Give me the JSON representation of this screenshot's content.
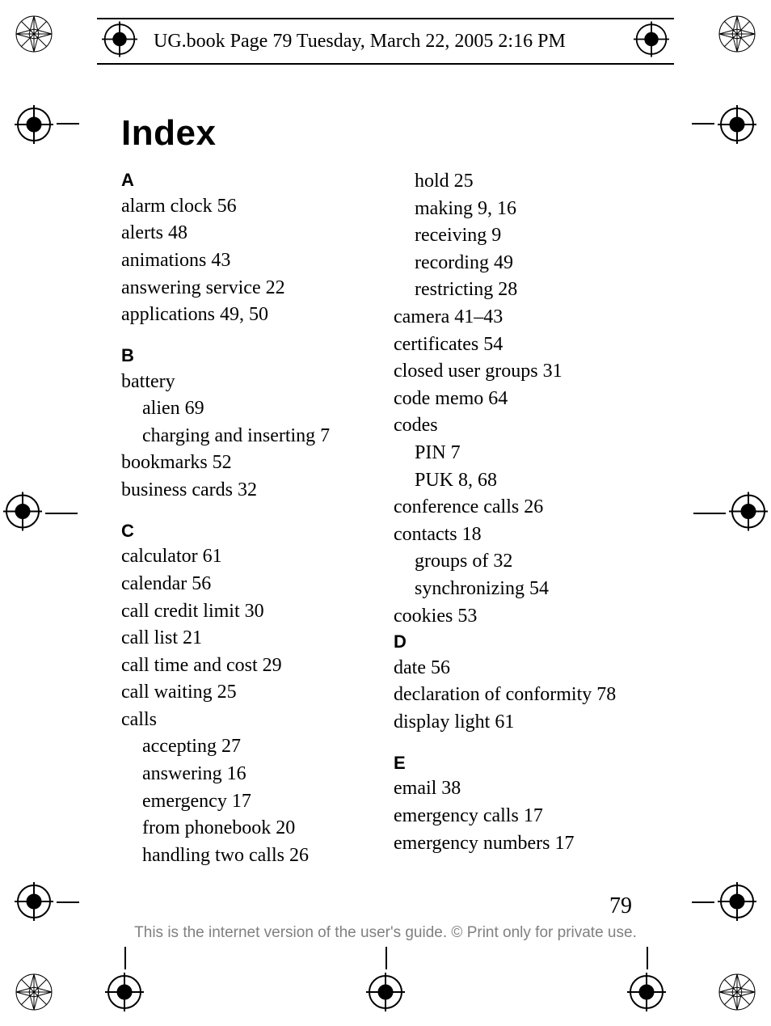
{
  "header": "UG.book  Page 79  Tuesday, March 22, 2005  2:16 PM",
  "title": "Index",
  "page_number": "79",
  "footer": "This is the internet version of the user's guide. © Print only for private use.",
  "colors": {
    "text": "#000000",
    "footer_text": "#808080",
    "background": "#ffffff"
  },
  "typography": {
    "body_font": "Times New Roman",
    "heading_font": "Arial",
    "title_size_pt": 33,
    "letter_size_pt": 16,
    "entry_size_pt": 18,
    "footer_size_pt": 14
  },
  "columns": {
    "left": [
      {
        "type": "letter",
        "text": "A"
      },
      {
        "type": "entry",
        "text": "alarm clock 56"
      },
      {
        "type": "entry",
        "text": "alerts 48"
      },
      {
        "type": "entry",
        "text": "animations 43"
      },
      {
        "type": "entry",
        "text": "answering service 22"
      },
      {
        "type": "entry",
        "text": "applications 49, 50"
      },
      {
        "type": "letter",
        "text": "B"
      },
      {
        "type": "entry",
        "text": "battery"
      },
      {
        "type": "sub",
        "text": "alien 69"
      },
      {
        "type": "sub",
        "text": "charging and inserting 7"
      },
      {
        "type": "entry",
        "text": "bookmarks 52"
      },
      {
        "type": "entry",
        "text": "business cards 32"
      },
      {
        "type": "letter",
        "text": "C"
      },
      {
        "type": "entry",
        "text": "calculator 61"
      },
      {
        "type": "entry",
        "text": "calendar 56"
      },
      {
        "type": "entry",
        "text": "call credit limit 30"
      },
      {
        "type": "entry",
        "text": "call list 21"
      },
      {
        "type": "entry",
        "text": "call time and cost 29"
      },
      {
        "type": "entry",
        "text": "call waiting 25"
      },
      {
        "type": "entry",
        "text": "calls"
      },
      {
        "type": "sub",
        "text": "accepting 27"
      },
      {
        "type": "sub",
        "text": "answering 16"
      },
      {
        "type": "sub",
        "text": "emergency 17"
      },
      {
        "type": "sub",
        "text": "from phonebook 20"
      },
      {
        "type": "sub",
        "text": "handling two calls 26"
      }
    ],
    "right": [
      {
        "type": "sub",
        "text": "hold 25"
      },
      {
        "type": "sub",
        "text": "making 9, 16"
      },
      {
        "type": "sub",
        "text": "receiving 9"
      },
      {
        "type": "sub",
        "text": "recording 49"
      },
      {
        "type": "sub",
        "text": "restricting 28"
      },
      {
        "type": "entry",
        "text": "camera 41–43"
      },
      {
        "type": "entry",
        "text": "certificates 54"
      },
      {
        "type": "entry",
        "text": "closed user groups 31"
      },
      {
        "type": "entry",
        "text": "code memo 64"
      },
      {
        "type": "entry",
        "text": "codes"
      },
      {
        "type": "sub",
        "text": "PIN 7"
      },
      {
        "type": "sub",
        "text": "PUK 8, 68"
      },
      {
        "type": "entry",
        "text": "conference calls 26"
      },
      {
        "type": "entry",
        "text": "contacts 18"
      },
      {
        "type": "sub",
        "text": "groups of 32"
      },
      {
        "type": "sub",
        "text": "synchronizing 54"
      },
      {
        "type": "entry",
        "text": "cookies 53"
      },
      {
        "type": "letter",
        "text": "D"
      },
      {
        "type": "entry",
        "text": "date 56"
      },
      {
        "type": "entry",
        "text": "declaration of conformity 78"
      },
      {
        "type": "entry",
        "text": "display light 61"
      },
      {
        "type": "letter",
        "text": "E"
      },
      {
        "type": "entry",
        "text": "email 38"
      },
      {
        "type": "entry",
        "text": "emergency calls 17"
      },
      {
        "type": "entry",
        "text": "emergency numbers 17"
      }
    ]
  }
}
